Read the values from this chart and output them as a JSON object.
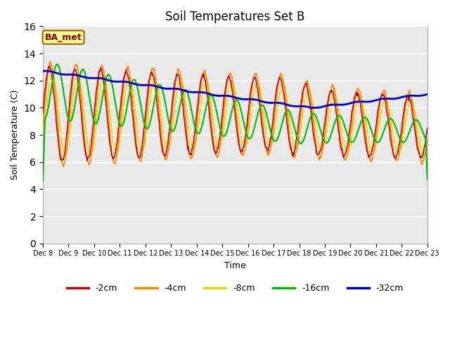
{
  "title": "Soil Temperatures Set B",
  "xlabel": "Time",
  "ylabel": "Soil Temperature (C)",
  "ylim": [
    0,
    16
  ],
  "yticks": [
    0,
    2,
    4,
    6,
    8,
    10,
    12,
    14,
    16
  ],
  "annotation": "BA_met",
  "plot_bg_color": "#e8e8e8",
  "legend_labels": [
    "-2cm",
    "-4cm",
    "-8cm",
    "-16cm",
    "-32cm"
  ],
  "line_colors": [
    "#cc0000",
    "#ff8800",
    "#dddd00",
    "#00bb00",
    "#0000cc"
  ],
  "line_widths": [
    1.2,
    1.2,
    1.2,
    1.5,
    2.0
  ],
  "x_tick_labels": [
    "Dec 8",
    "Dec 9",
    "Dec 10",
    "Dec 11",
    "Dec 12",
    "Dec 13",
    "Dec 14",
    "Dec 15",
    "Dec 16",
    "Dec 17",
    "Dec 18",
    "Dec 19",
    "Dec 20",
    "Dec 21",
    "Dec 22",
    "Dec 23"
  ],
  "num_days": 15,
  "points_per_day": 48
}
